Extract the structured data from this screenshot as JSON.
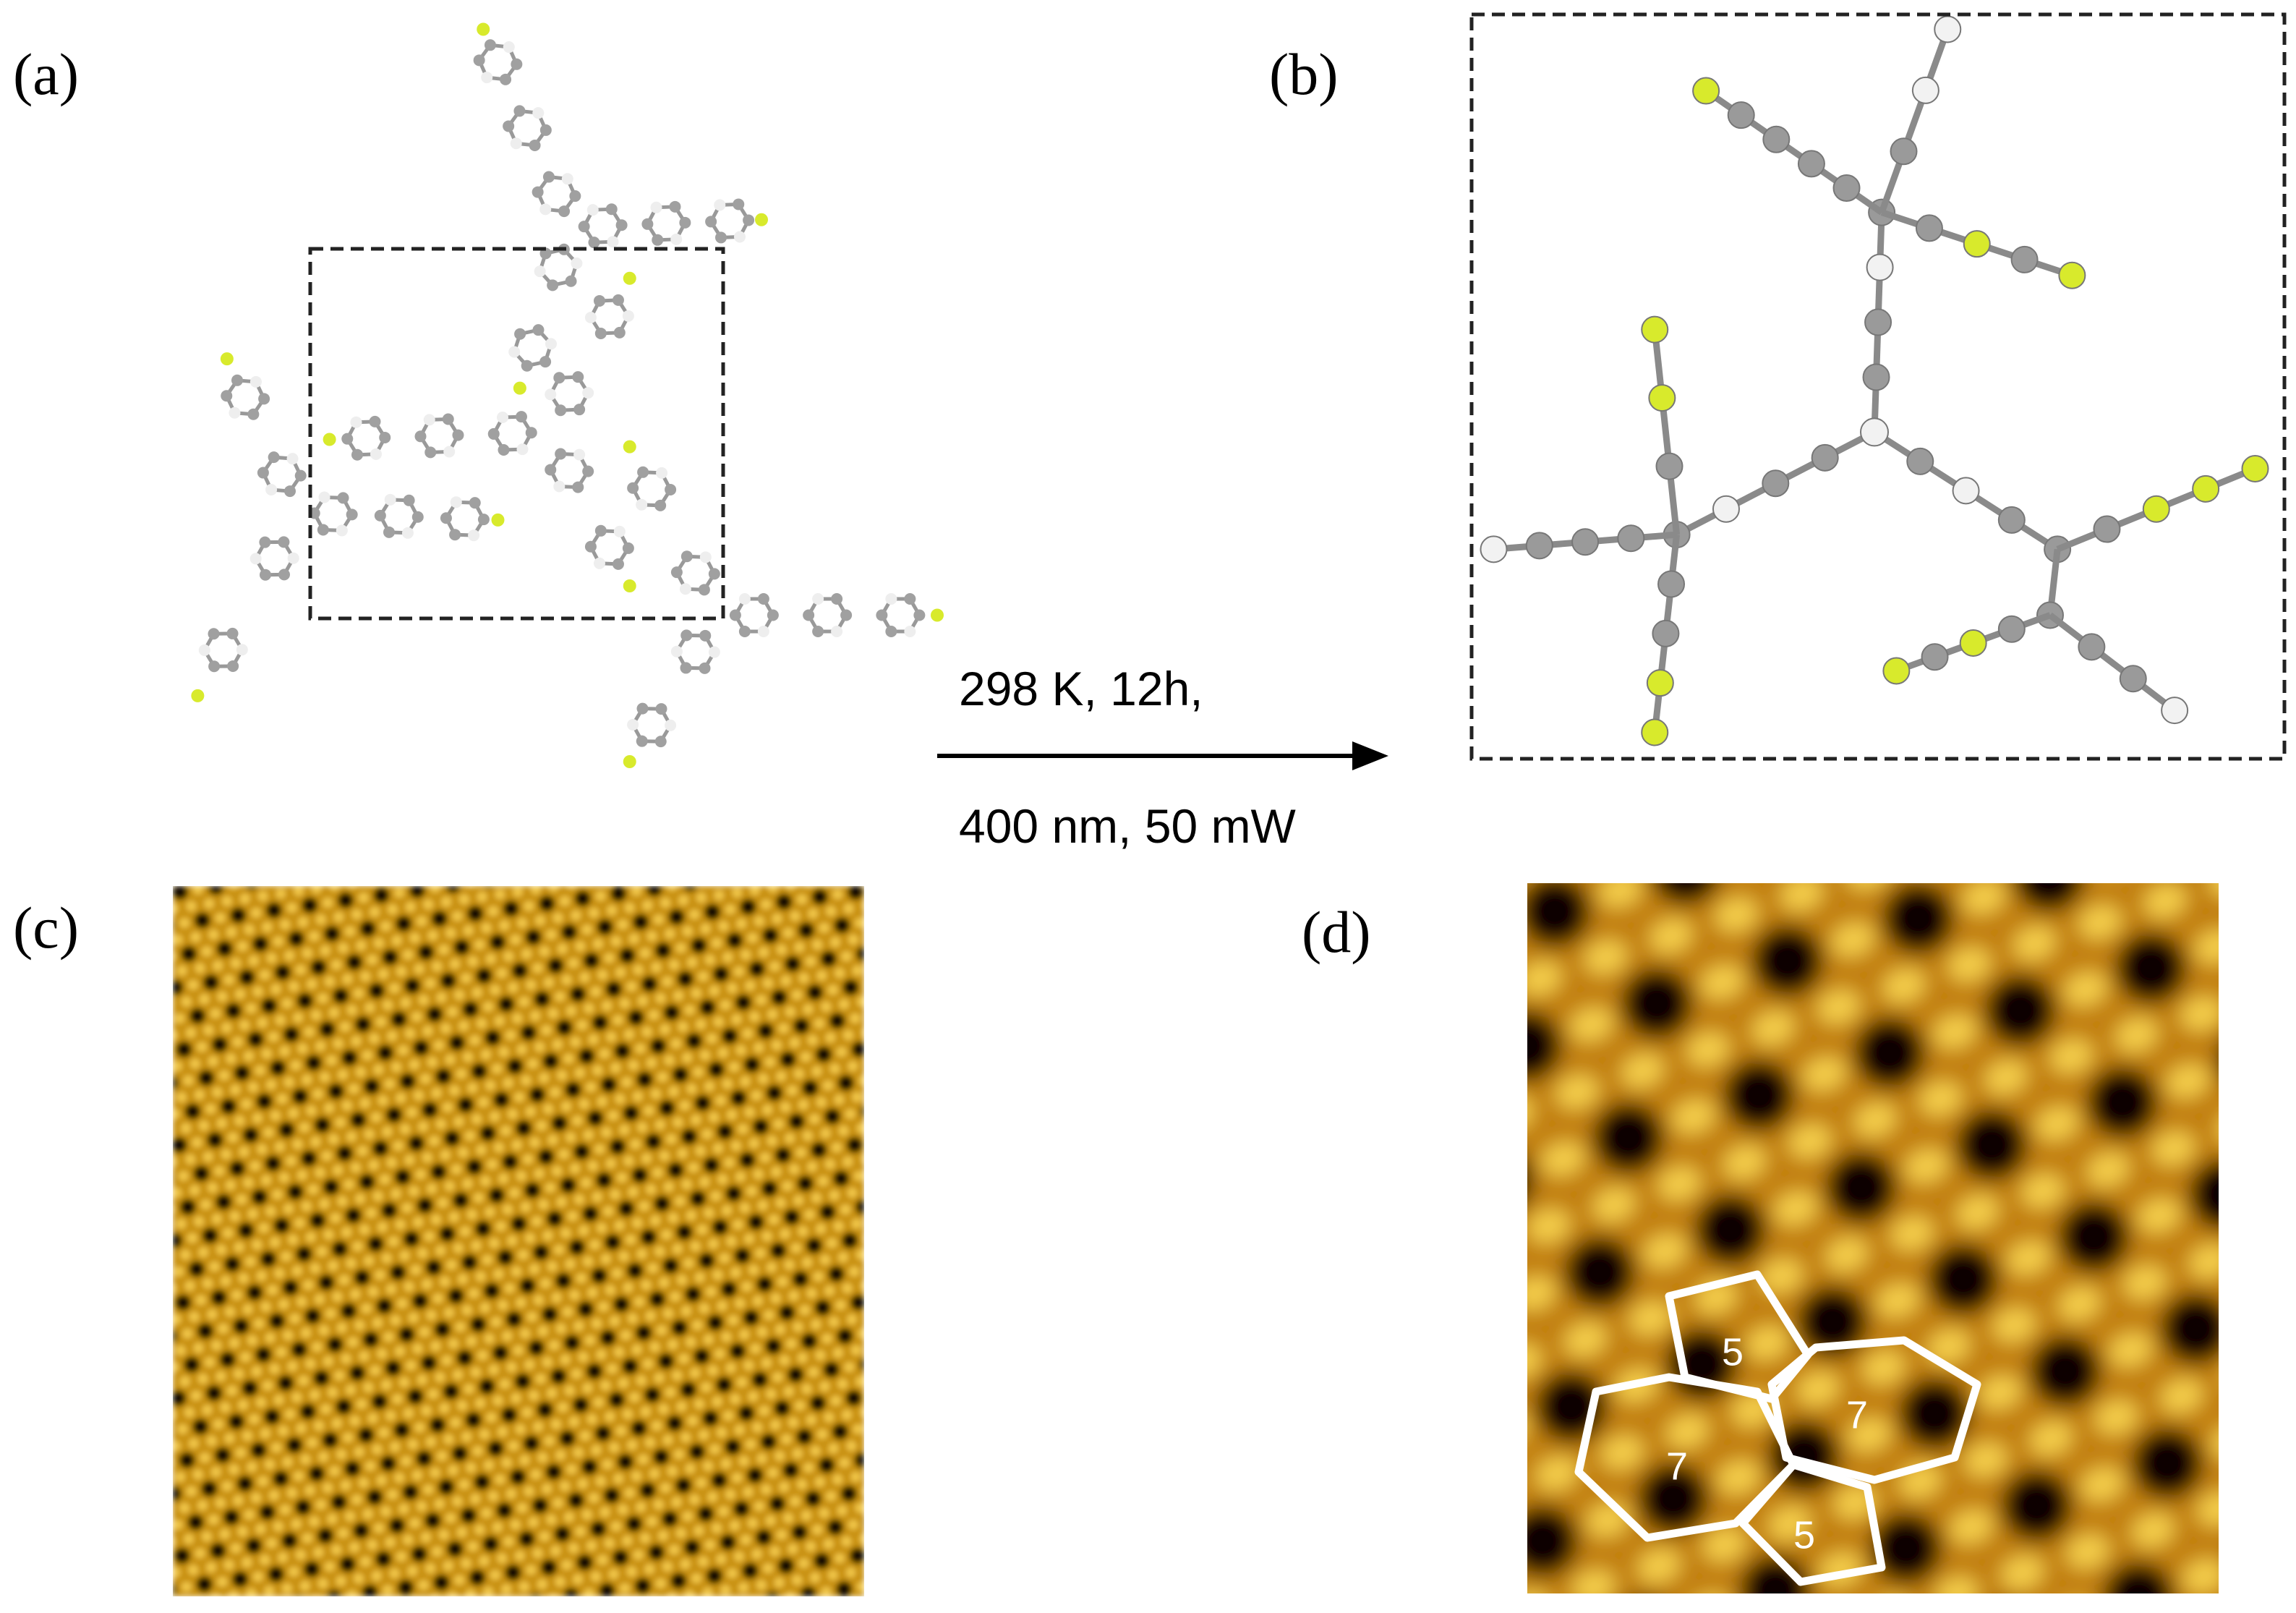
{
  "panels": [
    {
      "label": "(a)"
    },
    {
      "label": "(b)"
    },
    {
      "label": "(c)"
    },
    {
      "label": "(d)"
    }
  ],
  "reaction": {
    "conditions": [
      "298 K, 12h,",
      "400 nm, 50 mW"
    ]
  },
  "defects": [
    {
      "label": "5"
    },
    {
      "label": "7"
    },
    {
      "label": "7"
    },
    {
      "label": "5"
    }
  ]
}
